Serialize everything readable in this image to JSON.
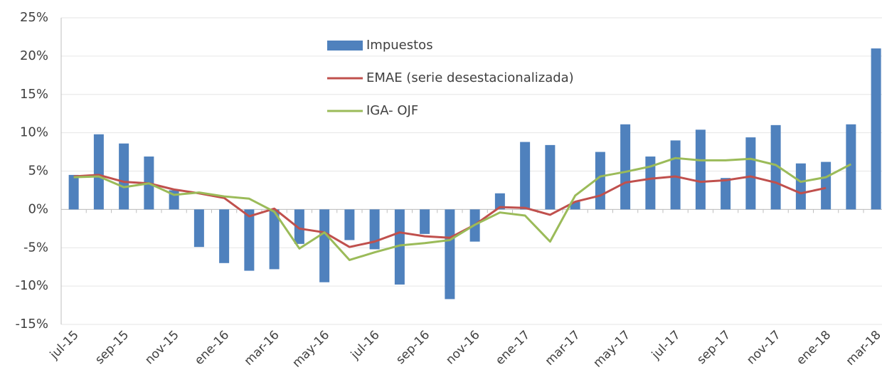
{
  "chart_data": {
    "type": "bar-line",
    "categories": [
      "jul-15",
      null,
      "sep-15",
      null,
      "nov-15",
      null,
      "ene-16",
      null,
      "mar-16",
      null,
      "may-16",
      null,
      "jul-16",
      null,
      "sep-16",
      null,
      "nov-16",
      null,
      "ene-17",
      null,
      "mar-17",
      null,
      "may-17",
      null,
      "jul-17",
      null,
      "sep-17",
      null,
      "nov-17",
      null,
      "ene-18",
      null,
      "mar-18"
    ],
    "series": [
      {
        "name": "Impuestos",
        "type": "bar",
        "color": "#4f81bd",
        "values": [
          4.5,
          9.8,
          8.6,
          6.9,
          2.5,
          -4.9,
          -7.0,
          -8.0,
          -7.8,
          -4.5,
          -9.5,
          -4.0,
          -5.2,
          -9.8,
          -3.2,
          -11.7,
          -4.2,
          2.1,
          8.8,
          8.4,
          1.0,
          7.5,
          11.1,
          6.9,
          9.0,
          10.4,
          4.1,
          9.4,
          11.0,
          6.0,
          6.2,
          11.1,
          21.0
        ]
      },
      {
        "name": "EMAE (serie desestacionalizada)",
        "type": "line",
        "color": "#c0504d",
        "values": [
          4.3,
          4.5,
          3.6,
          3.4,
          2.6,
          2.1,
          1.5,
          -0.9,
          0.1,
          -2.5,
          -3.0,
          -4.9,
          -4.2,
          -3.0,
          -3.5,
          -3.7,
          -2.0,
          0.3,
          0.2,
          -0.7,
          1.0,
          1.8,
          3.5,
          4.0,
          4.3,
          3.6,
          3.8,
          4.3,
          3.5,
          2.1,
          2.8,
          null,
          null
        ]
      },
      {
        "name": "IGA- OJF",
        "type": "line",
        "color": "#9bbb59",
        "values": [
          4.2,
          4.3,
          2.9,
          3.4,
          1.9,
          2.2,
          1.7,
          1.4,
          -0.3,
          -5.1,
          -3.0,
          -6.6,
          -5.6,
          -4.7,
          -4.4,
          -4.0,
          -2.0,
          -0.4,
          -0.8,
          -4.2,
          1.8,
          4.3,
          4.9,
          5.6,
          6.7,
          6.4,
          6.4,
          6.6,
          5.8,
          3.6,
          4.2,
          5.9,
          null
        ]
      }
    ],
    "ylim": [
      -15,
      25
    ],
    "yticks": [
      {
        "value": -15,
        "label": "-15%"
      },
      {
        "value": -10,
        "label": "-10%"
      },
      {
        "value": -5,
        "label": "-5%"
      },
      {
        "value": 0,
        "label": "0%"
      },
      {
        "value": 5,
        "label": "5%"
      },
      {
        "value": 10,
        "label": "10%"
      },
      {
        "value": 15,
        "label": "15%"
      },
      {
        "value": 20,
        "label": "20%"
      },
      {
        "value": 25,
        "label": "25%"
      }
    ],
    "grid": true,
    "legend": "top-center"
  }
}
